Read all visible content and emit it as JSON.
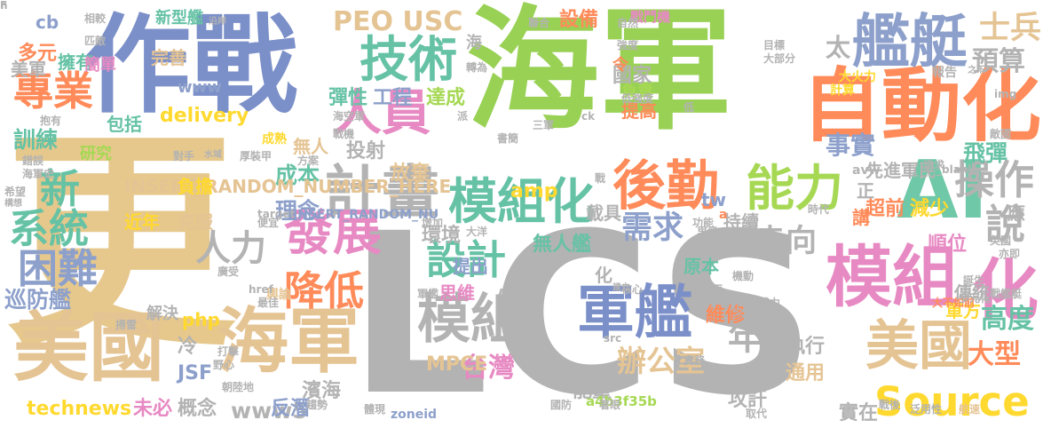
{
  "words": [
    {
      "text": "LCS",
      "color": "#b3b3b3"
    },
    {
      "text": "更",
      "color": "#e6c88c"
    },
    {
      "text": "海軍",
      "color": "#99d155"
    },
    {
      "text": "作戰",
      "color": "#7b8fc9"
    },
    {
      "text": "自動化",
      "color": "#ff8b5a"
    },
    {
      "text": "美國",
      "color": "#e5c494"
    },
    {
      "text": "海軍",
      "color": "#e5c494"
    },
    {
      "text": "AI",
      "color": "#6fc8a8"
    },
    {
      "text": "計畫",
      "color": "#b3b3b3"
    },
    {
      "text": "艦艇",
      "color": "#8da0cb"
    },
    {
      "text": "模組化",
      "color": "#66c2a5"
    },
    {
      "text": "模組",
      "color": "#e78ac3"
    },
    {
      "text": "化",
      "color": "#e78ac3"
    },
    {
      "text": "後勤",
      "color": "#ff8b5a"
    },
    {
      "text": "軍艦",
      "color": "#7b8fc9"
    },
    {
      "text": "模組",
      "color": "#b3b3b3"
    },
    {
      "text": "美國",
      "color": "#e5c494"
    },
    {
      "text": "發展",
      "color": "#e78ac3"
    },
    {
      "text": "技術",
      "color": "#66c2a5"
    },
    {
      "text": "人員",
      "color": "#e78ac3"
    },
    {
      "text": "能力",
      "color": "#a6d854"
    },
    {
      "text": "Source",
      "color": "#ffd92f"
    },
    {
      "text": "新",
      "color": "#66c2a5"
    },
    {
      "text": "系統",
      "color": "#66c2a5"
    },
    {
      "text": "專業",
      "color": "#ff8b5a"
    },
    {
      "text": "困難",
      "color": "#8da0cb"
    },
    {
      "text": "降低",
      "color": "#ff8b5a"
    },
    {
      "text": "設計",
      "color": "#66c2a5"
    },
    {
      "text": "人力",
      "color": "#b3b3b3"
    },
    {
      "text": "操作",
      "color": "#b3b3b3"
    },
    {
      "text": "說",
      "color": "#b3b3b3"
    },
    {
      "text": "年",
      "color": "#b3b3b3"
    },
    {
      "text": "士兵",
      "color": "#e5c494"
    },
    {
      "text": "預算",
      "color": "#b3b3b3"
    },
    {
      "text": "太",
      "color": "#b3b3b3"
    },
    {
      "text": "PEO USC",
      "color": "#e5c494"
    },
    {
      "text": "需求",
      "color": "#8da0cb"
    },
    {
      "text": "走向",
      "color": "#b3b3b3"
    },
    {
      "text": "辦公室",
      "color": "#e5c494"
    },
    {
      "text": "台灣",
      "color": "#e78ac3"
    },
    {
      "text": "高度",
      "color": "#66c2a5"
    },
    {
      "text": "大型",
      "color": "#ff8b5a"
    },
    {
      "text": "巡防艦",
      "color": "#8da0cb"
    },
    {
      "text": "technews",
      "color": "#ffd92f"
    },
    {
      "text": "www5",
      "color": "#b3b3b3"
    },
    {
      "text": "成本",
      "color": "#66c2a5"
    },
    {
      "text": "理念",
      "color": "#8da0cb"
    },
    {
      "text": "事實",
      "color": "#8da0cb"
    },
    {
      "text": "先進軍民",
      "color": "#b3b3b3"
    },
    {
      "text": "飛彈",
      "color": "#66c2a5"
    },
    {
      "text": "訓練",
      "color": "#66c2a5"
    },
    {
      "text": "delivery",
      "color": "#ffd92f"
    },
    {
      "text": "包括",
      "color": "#66c2a5"
    },
    {
      "text": "擁有",
      "color": "#66c2a5"
    },
    {
      "text": "多元",
      "color": "#ff8b5a"
    },
    {
      "text": "美軍",
      "color": "#b3b3b3"
    },
    {
      "text": "cb",
      "color": "#8da0cb"
    },
    {
      "text": "www",
      "color": "#8da0cb"
    },
    {
      "text": "簡單",
      "color": "#e78ac3"
    },
    {
      "text": "完善",
      "color": "#e5c494"
    },
    {
      "text": "新型艦",
      "color": "#66c2a5"
    },
    {
      "text": "設備",
      "color": "#ff8b5a"
    },
    {
      "text": "戰鬥機",
      "color": "#e78ac3"
    },
    {
      "text": "INSERT_RANDOM_NUMBER_HERE",
      "color": "#e5c494"
    },
    {
      "text": "負擔",
      "color": "#ffd92f"
    },
    {
      "text": "近年",
      "color": "#ffd92f"
    },
    {
      "text": "克服",
      "color": "#e5c494"
    },
    {
      "text": "無人",
      "color": "#e5c494"
    },
    {
      "text": "投射",
      "color": "#b3b3b3"
    },
    {
      "text": "放棄",
      "color": "#e5c494"
    },
    {
      "text": "彈性",
      "color": "#66c2a5"
    },
    {
      "text": "工程",
      "color": "#8da0cb"
    },
    {
      "text": "達成",
      "color": "#a6d854"
    },
    {
      "text": "提高",
      "color": "#ff8b5a"
    },
    {
      "text": "國家",
      "color": "#b3b3b3"
    },
    {
      "text": "負責",
      "color": "#a6d854"
    },
    {
      "text": "令",
      "color": "#ff8b5a"
    },
    {
      "text": "amp",
      "color": "#ffd92f"
    },
    {
      "text": "超前",
      "color": "#ff8b5a"
    },
    {
      "text": "減少",
      "color": "#ffd92f"
    },
    {
      "text": "順位",
      "color": "#e78ac3"
    },
    {
      "text": "傳統",
      "color": "#b3b3b3"
    },
    {
      "text": "軍方",
      "color": "#ffd92f"
    },
    {
      "text": "維修",
      "color": "#ff8b5a"
    },
    {
      "text": "執行",
      "color": "#b3b3b3"
    },
    {
      "text": "通用",
      "color": "#e5c494"
    },
    {
      "text": "能量",
      "color": "#b3b3b3"
    },
    {
      "text": "攻訐",
      "color": "#b3b3b3"
    },
    {
      "text": "實在",
      "color": "#b3b3b3"
    },
    {
      "text": "濱海",
      "color": "#b3b3b3"
    },
    {
      "text": "反潛",
      "color": "#8da0cb"
    },
    {
      "text": "未必",
      "color": "#e78ac3"
    },
    {
      "text": "概念",
      "color": "#b3b3b3"
    },
    {
      "text": "冷",
      "color": "#b3b3b3"
    },
    {
      "text": "JSF",
      "color": "#8da0cb"
    },
    {
      "text": "php",
      "color": "#ffd92f"
    },
    {
      "text": "解決",
      "color": "#b3b3b3"
    },
    {
      "text": "研究",
      "color": "#a6d854"
    },
    {
      "text": "MPCE",
      "color": "#e5c494"
    },
    {
      "text": "提出",
      "color": "#8da0cb"
    },
    {
      "text": "環境",
      "color": "#b3b3b3"
    },
    {
      "text": "無人艦",
      "color": "#66c2a5"
    },
    {
      "text": "原本",
      "color": "#66c2a5"
    },
    {
      "text": "小型",
      "color": "#b3b3b3"
    },
    {
      "text": "思維",
      "color": "#e78ac3"
    },
    {
      "text": "載具",
      "color": "#b3b3b3"
    },
    {
      "text": "持續",
      "color": "#b3b3b3"
    },
    {
      "text": "tw",
      "color": "#8da0cb"
    },
    {
      "text": "講",
      "color": "#ff8b5a"
    },
    {
      "text": "正",
      "color": "#b3b3b3"
    },
    {
      "text": "應",
      "color": "#b3b3b3"
    },
    {
      "text": "中",
      "color": "#b3b3b3"
    },
    {
      "text": "化",
      "color": "#b3b3b3"
    },
    {
      "text": "海",
      "color": "#b3b3b3"
    },
    {
      "text": "a",
      "color": "#ff8b5a"
    },
    {
      "text": "a4b3f35b",
      "color": "#a6d854"
    },
    {
      "text": "zoneid",
      "color": "#8da0cb"
    },
    {
      "text": "INSERT_RANDOM_NU",
      "color": "#8da0cb"
    },
    {
      "text": "大火力",
      "color": "#ffd92f"
    },
    {
      "text": "報告",
      "color": "#b3b3b3"
    },
    {
      "text": "計算",
      "color": "#ffd92f"
    },
    {
      "text": "avw",
      "color": "#b3b3b3"
    },
    {
      "text": "成熟",
      "color": "#ffd92f"
    },
    {
      "text": "需",
      "color": "#b3b3b3"
    },
    {
      "text": "大不如前",
      "color": "#ff8b5a"
    },
    {
      "text": "航速",
      "color": "#e5c494"
    },
    {
      "text": "多元化",
      "color": "#b3b3b3"
    },
    {
      "text": "戰艦艇",
      "color": "#b3b3b3"
    },
    {
      "text": "輿論",
      "color": "#e5c494"
    },
    {
      "text": "href",
      "color": "#b3b3b3"
    },
    {
      "text": "廣受",
      "color": "#b3b3b3"
    },
    {
      "text": "沿岸",
      "color": "#b3b3b3"
    },
    {
      "text": "匹敵",
      "color": "#b3b3b3"
    },
    {
      "text": "相較",
      "color": "#b3b3b3"
    },
    {
      "text": "抱有",
      "color": "#b3b3b3"
    },
    {
      "text": "希望",
      "color": "#b3b3b3"
    },
    {
      "text": "海軍史",
      "color": "#b3b3b3"
    },
    {
      "text": "錯誤",
      "color": "#b3b3b3"
    },
    {
      "text": "構想",
      "color": "#b3b3b3"
    },
    {
      "text": "敵國",
      "color": "#b3b3b3"
    },
    {
      "text": "之下",
      "color": "#b3b3b3"
    },
    {
      "text": "目標",
      "color": "#b3b3b3"
    },
    {
      "text": "大部分",
      "color": "#b3b3b3"
    },
    {
      "text": "強度",
      "color": "#b3b3b3"
    },
    {
      "text": "低強度",
      "color": "#b3b3b3"
    },
    {
      "text": "自然",
      "color": "#b3b3b3"
    },
    {
      "text": "聯合",
      "color": "#b3b3b3"
    },
    {
      "text": "轉為",
      "color": "#b3b3b3"
    },
    {
      "text": "派",
      "color": "#b3b3b3"
    },
    {
      "text": "海空軍",
      "color": "#b3b3b3"
    },
    {
      "text": "戰機",
      "color": "#b3b3b3"
    },
    {
      "text": "方案",
      "color": "#b3b3b3"
    },
    {
      "text": "對手",
      "color": "#b3b3b3"
    },
    {
      "text": "水域",
      "color": "#b3b3b3"
    },
    {
      "text": "厚裝甲",
      "color": "#b3b3b3"
    },
    {
      "text": "target",
      "color": "#b3b3b3"
    },
    {
      "text": "便宜",
      "color": "#b3b3b3"
    },
    {
      "text": "掃雷",
      "color": "#b3b3b3"
    },
    {
      "text": "最佳",
      "color": "#b3b3b3"
    },
    {
      "text": "打擊",
      "color": "#b3b3b3"
    },
    {
      "text": "朝陸地",
      "color": "#b3b3b3"
    },
    {
      "text": "趨勢",
      "color": "#b3b3b3"
    },
    {
      "text": "體現",
      "color": "#b3b3b3"
    },
    {
      "text": "國防",
      "color": "#b3b3b3"
    },
    {
      "text": "著眼",
      "color": "#b3b3b3"
    },
    {
      "text": "取代",
      "color": "#b3b3b3"
    },
    {
      "text": "戰後",
      "color": "#b3b3b3"
    },
    {
      "text": "泛用性",
      "color": "#b3b3b3"
    },
    {
      "text": "實務",
      "color": "#b3b3b3"
    },
    {
      "text": "野心",
      "color": "#b3b3b3"
    },
    {
      "text": "觀點",
      "color": "#b3b3b3"
    },
    {
      "text": "src",
      "color": "#b3b3b3"
    },
    {
      "text": "少",
      "color": "#b3b3b3"
    },
    {
      "text": "水面",
      "color": "#b3b3b3"
    },
    {
      "text": "核心",
      "color": "#b3b3b3"
    },
    {
      "text": "建立",
      "color": "#b3b3b3"
    },
    {
      "text": "軍艦",
      "color": "#b3b3b3"
    },
    {
      "text": "大洋",
      "color": "#b3b3b3"
    },
    {
      "text": "增加",
      "color": "#b3b3b3"
    },
    {
      "text": "功能",
      "color": "#b3b3b3"
    },
    {
      "text": "里級",
      "color": "#b3b3b3"
    },
    {
      "text": "時代",
      "color": "#b3b3b3"
    },
    {
      "text": "追求",
      "color": "#b3b3b3"
    },
    {
      "text": "英國",
      "color": "#b3b3b3"
    },
    {
      "text": "亦即",
      "color": "#b3b3b3"
    },
    {
      "text": "誕生",
      "color": "#b3b3b3"
    },
    {
      "text": "武力",
      "color": "#b3b3b3"
    },
    {
      "text": "機動",
      "color": "#b3b3b3"
    },
    {
      "text": "_blank",
      "color": "#b3b3b3"
    },
    {
      "text": "ck",
      "color": "#b3b3b3"
    },
    {
      "text": "三軍",
      "color": "#b3b3b3"
    },
    {
      "text": "書簡",
      "color": "#b3b3b3"
    },
    {
      "text": "戰",
      "color": "#b3b3b3"
    },
    {
      "text": "低",
      "color": "#b3b3b3"
    },
    {
      "text": "img",
      "color": "#b3b3b3"
    },
    {
      "text": "n",
      "color": "#b3b3b3"
    },
    {
      "text": "F",
      "color": "#b3b3b3"
    }
  ]
}
